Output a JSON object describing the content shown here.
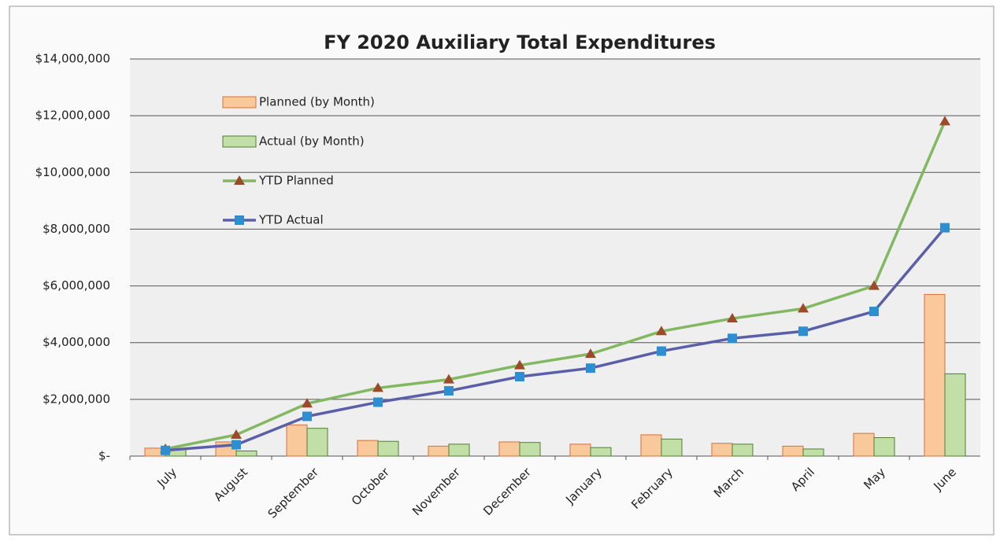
{
  "chart_data": {
    "type": "bar",
    "title": "FY 2020 Auxiliary Total Expenditures",
    "categories": [
      "July",
      "August",
      "September",
      "October",
      "November",
      "December",
      "January",
      "February",
      "March",
      "April",
      "May",
      "June"
    ],
    "series": [
      {
        "name": "Planned (by Month)",
        "type": "bar",
        "color": "#f9c89b",
        "stroke": "#d6703a",
        "values": [
          280000,
          500000,
          1100000,
          550000,
          350000,
          500000,
          420000,
          750000,
          450000,
          350000,
          800000,
          5700000
        ]
      },
      {
        "name": "Actual (by Month)",
        "type": "bar",
        "color": "#c3dfa8",
        "stroke": "#4f7f33",
        "values": [
          220000,
          180000,
          980000,
          520000,
          420000,
          480000,
          300000,
          600000,
          420000,
          250000,
          650000,
          2900000
        ]
      },
      {
        "name": "YTD Planned",
        "type": "line",
        "color": "#82b860",
        "marker": "triangle",
        "marker_color": "#9c4a2a",
        "values": [
          250000,
          750000,
          1850000,
          2400000,
          2700000,
          3200000,
          3600000,
          4400000,
          4850000,
          5200000,
          6000000,
          11800000
        ]
      },
      {
        "name": "YTD Actual",
        "type": "line",
        "color": "#5b5fa8",
        "marker": "square",
        "marker_color": "#2e8fd0",
        "values": [
          200000,
          400000,
          1400000,
          1900000,
          2300000,
          2800000,
          3100000,
          3700000,
          4150000,
          4400000,
          5100000,
          8050000
        ]
      }
    ],
    "ylim": [
      0,
      14000000
    ],
    "yticks": [
      {
        "value": 0,
        "label": "$-"
      },
      {
        "value": 2000000,
        "label": "$2,000,000"
      },
      {
        "value": 4000000,
        "label": "$4,000,000"
      },
      {
        "value": 6000000,
        "label": "$6,000,000"
      },
      {
        "value": 8000000,
        "label": "$8,000,000"
      },
      {
        "value": 10000000,
        "label": "$10,000,000"
      },
      {
        "value": 12000000,
        "label": "$12,000,000"
      },
      {
        "value": 14000000,
        "label": "$14,000,000"
      }
    ],
    "grid": true
  }
}
